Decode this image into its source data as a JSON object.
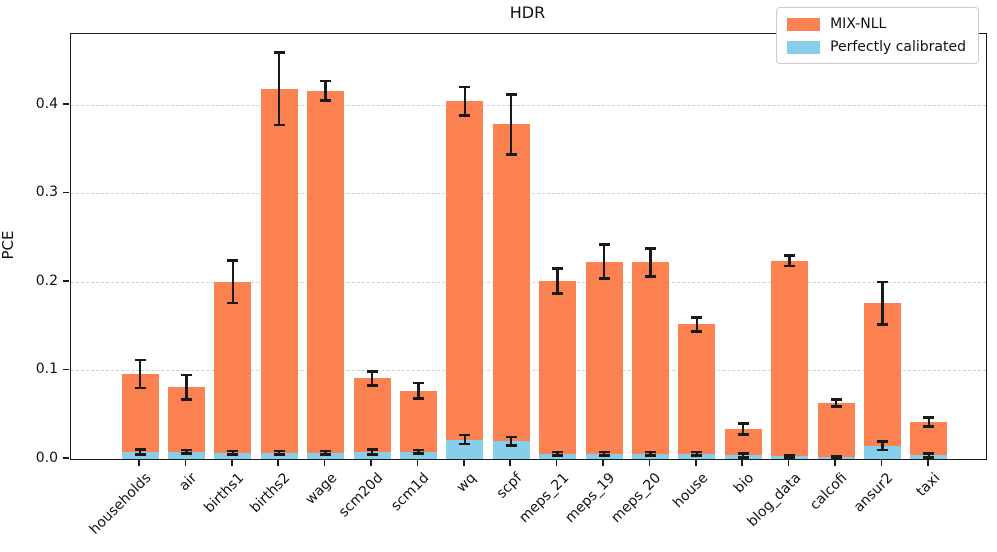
{
  "figure": {
    "title": "HDR",
    "ylabel": "PCE"
  },
  "legend": {
    "items": [
      {
        "label": "MIX-NLL",
        "color": "#FC8150"
      },
      {
        "label": "Perfectly calibrated",
        "color": "#87CEEB"
      }
    ]
  },
  "colors": {
    "bar_orange": "#FC8150",
    "bar_skyblue": "#87CEEB",
    "errorbar": "#1a1a1a",
    "gridline": "#cfcfcf",
    "axis": "#1a1a1a",
    "background": "#ffffff"
  },
  "chart_data": {
    "type": "bar",
    "title": "HDR",
    "xlabel": "",
    "ylabel": "PCE",
    "ylim": [
      0,
      0.48
    ],
    "yticks": [
      0.0,
      0.1,
      0.2,
      0.3,
      0.4
    ],
    "grid": "horizontal dashed at yticks (except 0)",
    "legend_position": "upper right",
    "categories": [
      "households",
      "air",
      "births1",
      "births2",
      "wage",
      "scm20d",
      "scm1d",
      "wq",
      "scpf",
      "meps_21",
      "meps_19",
      "meps_20",
      "house",
      "bio",
      "blog_data",
      "calcofi",
      "ansur2",
      "taxi"
    ],
    "series": [
      {
        "name": "MIX-NLL",
        "color": "#FC8150",
        "values": [
          0.096,
          0.081,
          0.2,
          0.418,
          0.416,
          0.091,
          0.077,
          0.404,
          0.378,
          0.201,
          0.223,
          0.222,
          0.152,
          0.034,
          0.224,
          0.063,
          0.176,
          0.042
        ],
        "errors": [
          0.016,
          0.014,
          0.024,
          0.041,
          0.011,
          0.008,
          0.009,
          0.016,
          0.034,
          0.014,
          0.019,
          0.016,
          0.008,
          0.006,
          0.006,
          0.004,
          0.024,
          0.005
        ]
      },
      {
        "name": "Perfectly calibrated",
        "color": "#87CEEB",
        "values": [
          0.008,
          0.008,
          0.007,
          0.007,
          0.007,
          0.008,
          0.008,
          0.022,
          0.02,
          0.006,
          0.006,
          0.006,
          0.006,
          0.004,
          0.003,
          0.002,
          0.015,
          0.004
        ],
        "errors": [
          0.003,
          0.002,
          0.002,
          0.002,
          0.002,
          0.003,
          0.002,
          0.005,
          0.005,
          0.002,
          0.002,
          0.002,
          0.002,
          0.002,
          0.001,
          0.001,
          0.005,
          0.002
        ]
      }
    ]
  }
}
